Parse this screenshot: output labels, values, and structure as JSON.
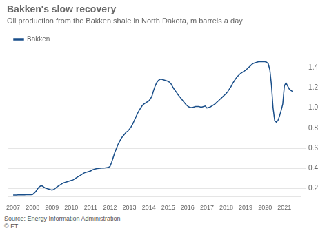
{
  "chart_data": {
    "type": "line",
    "title": "Bakken's slow recovery",
    "subtitle": "Oil production from the Bakken shale in North Dakota, m barrels a day",
    "source": "Source: Energy Information Administration\n© FT",
    "x": [
      2007.0,
      2007.083,
      2007.167,
      2007.25,
      2007.333,
      2007.417,
      2007.5,
      2007.583,
      2007.667,
      2007.75,
      2007.833,
      2007.917,
      2008.0,
      2008.083,
      2008.167,
      2008.25,
      2008.333,
      2008.417,
      2008.5,
      2008.583,
      2008.667,
      2008.75,
      2008.833,
      2008.917,
      2009.0,
      2009.083,
      2009.167,
      2009.25,
      2009.333,
      2009.417,
      2009.5,
      2009.583,
      2009.667,
      2009.75,
      2009.833,
      2009.917,
      2010.0,
      2010.083,
      2010.167,
      2010.25,
      2010.333,
      2010.417,
      2010.5,
      2010.583,
      2010.667,
      2010.75,
      2010.833,
      2010.917,
      2011.0,
      2011.083,
      2011.167,
      2011.25,
      2011.333,
      2011.417,
      2011.5,
      2011.583,
      2011.667,
      2011.75,
      2011.833,
      2011.917,
      2012.0,
      2012.083,
      2012.167,
      2012.25,
      2012.333,
      2012.417,
      2012.5,
      2012.583,
      2012.667,
      2012.75,
      2012.833,
      2012.917,
      2013.0,
      2013.083,
      2013.167,
      2013.25,
      2013.333,
      2013.417,
      2013.5,
      2013.583,
      2013.667,
      2013.75,
      2013.833,
      2013.917,
      2014.0,
      2014.083,
      2014.167,
      2014.25,
      2014.333,
      2014.417,
      2014.5,
      2014.583,
      2014.667,
      2014.75,
      2014.833,
      2014.917,
      2015.0,
      2015.083,
      2015.167,
      2015.25,
      2015.333,
      2015.417,
      2015.5,
      2015.583,
      2015.667,
      2015.75,
      2015.833,
      2015.917,
      2016.0,
      2016.083,
      2016.167,
      2016.25,
      2016.333,
      2016.417,
      2016.5,
      2016.583,
      2016.667,
      2016.75,
      2016.833,
      2016.917,
      2017.0,
      2017.083,
      2017.167,
      2017.25,
      2017.333,
      2017.417,
      2017.5,
      2017.583,
      2017.667,
      2017.75,
      2017.833,
      2017.917,
      2018.0,
      2018.083,
      2018.167,
      2018.25,
      2018.333,
      2018.417,
      2018.5,
      2018.583,
      2018.667,
      2018.75,
      2018.833,
      2018.917,
      2019.0,
      2019.083,
      2019.167,
      2019.25,
      2019.333,
      2019.417,
      2019.5,
      2019.583,
      2019.667,
      2019.75,
      2019.833,
      2019.917,
      2020.0,
      2020.083,
      2020.167,
      2020.25,
      2020.333,
      2020.417,
      2020.5,
      2020.583,
      2020.667,
      2020.75,
      2020.833,
      2020.917,
      2021.0,
      2021.083,
      2021.167,
      2021.25,
      2021.333,
      2021.417
    ],
    "series": [
      {
        "name": "Bakken",
        "color": "#1a4f8a",
        "values": [
          0.135,
          0.135,
          0.135,
          0.136,
          0.136,
          0.137,
          0.137,
          0.137,
          0.138,
          0.138,
          0.138,
          0.139,
          0.14,
          0.155,
          0.17,
          0.195,
          0.215,
          0.225,
          0.225,
          0.215,
          0.205,
          0.2,
          0.195,
          0.19,
          0.185,
          0.19,
          0.2,
          0.215,
          0.225,
          0.235,
          0.245,
          0.255,
          0.26,
          0.265,
          0.27,
          0.275,
          0.28,
          0.285,
          0.295,
          0.305,
          0.315,
          0.325,
          0.335,
          0.345,
          0.355,
          0.36,
          0.365,
          0.37,
          0.375,
          0.385,
          0.39,
          0.395,
          0.398,
          0.4,
          0.402,
          0.403,
          0.403,
          0.405,
          0.408,
          0.41,
          0.42,
          0.46,
          0.51,
          0.56,
          0.6,
          0.64,
          0.67,
          0.7,
          0.72,
          0.74,
          0.76,
          0.77,
          0.79,
          0.81,
          0.84,
          0.875,
          0.91,
          0.945,
          0.975,
          1.0,
          1.025,
          1.04,
          1.05,
          1.06,
          1.07,
          1.09,
          1.12,
          1.175,
          1.22,
          1.255,
          1.275,
          1.285,
          1.285,
          1.28,
          1.275,
          1.27,
          1.265,
          1.255,
          1.235,
          1.205,
          1.18,
          1.16,
          1.135,
          1.115,
          1.095,
          1.075,
          1.055,
          1.035,
          1.02,
          1.01,
          1.005,
          1.005,
          1.01,
          1.015,
          1.015,
          1.015,
          1.01,
          1.01,
          1.015,
          1.02,
          1.0,
          1.005,
          1.01,
          1.02,
          1.03,
          1.04,
          1.055,
          1.07,
          1.085,
          1.1,
          1.115,
          1.13,
          1.145,
          1.165,
          1.19,
          1.215,
          1.245,
          1.27,
          1.295,
          1.315,
          1.33,
          1.345,
          1.355,
          1.365,
          1.375,
          1.39,
          1.405,
          1.42,
          1.435,
          1.445,
          1.45,
          1.455,
          1.46,
          1.46,
          1.46,
          1.46,
          1.46,
          1.455,
          1.44,
          1.38,
          1.23,
          1.0,
          0.875,
          0.86,
          0.875,
          0.92,
          0.975,
          1.04,
          1.22,
          1.25,
          1.22,
          1.19,
          1.175,
          1.165
        ]
      }
    ],
    "xlim": [
      2006.75,
      2021.85
    ],
    "xticks": [
      2007,
      2008,
      2009,
      2010,
      2011,
      2012,
      2013,
      2014,
      2015,
      2016,
      2017,
      2018,
      2019,
      2020,
      2021
    ],
    "ylim": [
      0.12,
      1.58
    ],
    "yticks": [
      0.2,
      0.4,
      0.6,
      0.8,
      {
        "value": 1.0,
        "label": "1.0"
      },
      1.2,
      1.4
    ],
    "grid": "y",
    "legend": "upper left"
  }
}
